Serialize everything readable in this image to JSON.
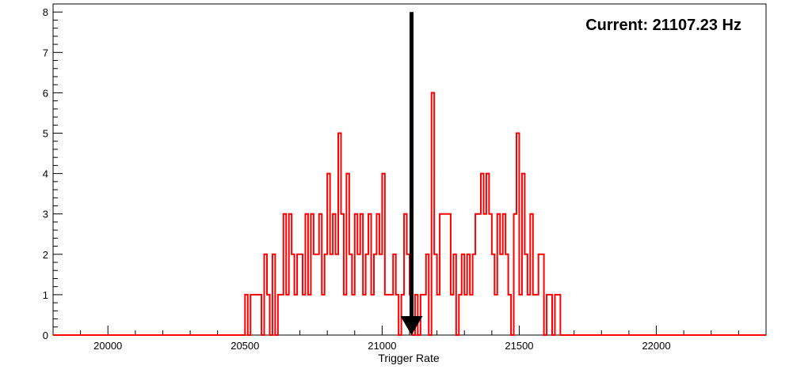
{
  "chart_data": {
    "type": "histogram",
    "annotation": "Current: 21107.23 Hz",
    "xlabel": "Trigger Rate",
    "ylabel": "",
    "xlim": [
      19800,
      22400
    ],
    "ylim": [
      0,
      8.2
    ],
    "xticks_major": [
      20000,
      20500,
      21000,
      21500,
      22000
    ],
    "xtick_labels": [
      "20000",
      "20500",
      "21000",
      "21500",
      "22000"
    ],
    "yticks_major": [
      0,
      1,
      2,
      3,
      4,
      5,
      6,
      7,
      8
    ],
    "ytick_labels": [
      "0",
      "1",
      "2",
      "3",
      "4",
      "5",
      "6",
      "7",
      "8"
    ],
    "bin_width": 10,
    "series": [
      {
        "color": "#ff0000",
        "x": [
          20500,
          20510,
          20520,
          20530,
          20540,
          20550,
          20560,
          20570,
          20580,
          20590,
          20600,
          20610,
          20620,
          20630,
          20640,
          20650,
          20660,
          20670,
          20680,
          20690,
          20700,
          20710,
          20720,
          20730,
          20740,
          20750,
          20760,
          20770,
          20780,
          20790,
          20800,
          20810,
          20820,
          20830,
          20840,
          20850,
          20860,
          20870,
          20880,
          20890,
          20900,
          20910,
          20920,
          20930,
          20940,
          20950,
          20960,
          20970,
          20980,
          20990,
          21000,
          21010,
          21020,
          21030,
          21040,
          21050,
          21060,
          21070,
          21080,
          21090,
          21100,
          21110,
          21120,
          21130,
          21140,
          21150,
          21160,
          21170,
          21180,
          21190,
          21200,
          21210,
          21220,
          21230,
          21240,
          21250,
          21260,
          21270,
          21280,
          21290,
          21300,
          21310,
          21320,
          21330,
          21340,
          21350,
          21360,
          21370,
          21380,
          21390,
          21400,
          21410,
          21420,
          21430,
          21440,
          21450,
          21460,
          21470,
          21480,
          21490,
          21500,
          21510,
          21520,
          21530,
          21540,
          21550,
          21560,
          21570,
          21580,
          21590,
          21600,
          21610,
          21620,
          21630,
          21640
        ],
        "values": [
          1,
          0,
          1,
          1,
          1,
          1,
          0,
          2,
          1,
          0,
          2,
          0,
          1,
          1,
          3,
          1,
          3,
          2,
          1,
          2,
          2,
          1,
          3,
          1,
          3,
          2,
          2,
          3,
          1,
          2,
          4,
          2,
          3,
          2,
          5,
          3,
          1,
          4,
          2,
          1,
          3,
          2,
          3,
          1,
          2,
          3,
          1,
          2,
          3,
          2,
          4,
          1,
          1,
          1,
          2,
          1,
          0,
          1,
          3,
          2,
          1,
          0,
          1,
          0,
          1,
          1,
          2,
          0,
          6,
          2,
          1,
          3,
          3,
          3,
          3,
          1,
          2,
          0,
          1,
          2,
          1,
          2,
          1,
          2,
          3,
          3,
          4,
          3,
          4,
          3,
          2,
          1,
          3,
          2,
          3,
          2,
          1,
          0,
          3,
          5,
          1,
          4,
          2,
          1,
          3,
          1,
          1,
          2,
          2,
          0,
          1,
          1,
          0,
          1,
          1
        ]
      }
    ],
    "arrow": {
      "x": 21107.23,
      "y_from": 8,
      "y_to": 0,
      "color": "#000000"
    }
  }
}
